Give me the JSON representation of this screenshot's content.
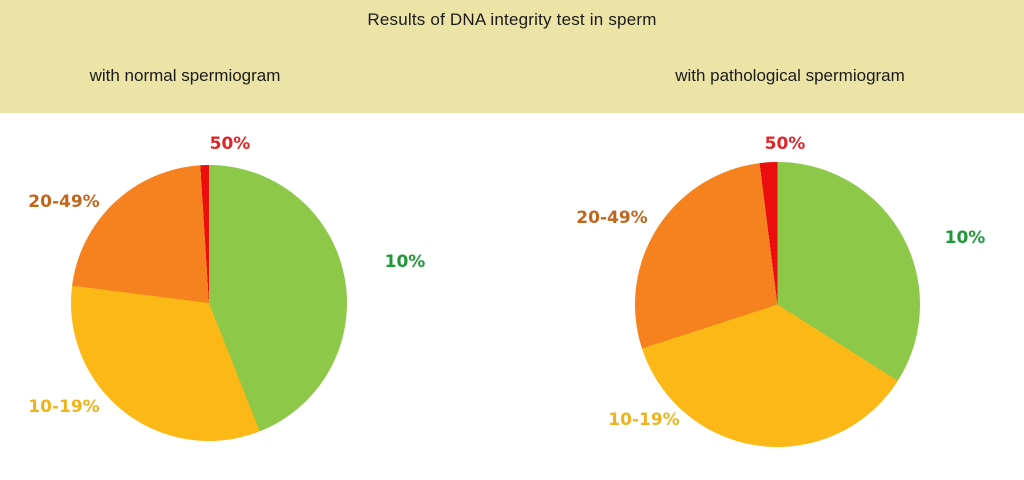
{
  "header": {
    "title": "Results of DNA integrity test in sperm",
    "background_color": "#ECE3A6",
    "left_subtitle": "with normal spermiogram",
    "right_subtitle": "with pathological spermiogram"
  },
  "chart_data": [
    {
      "type": "pie",
      "title": "with normal spermiogram",
      "labels": [
        "10%",
        "10-19%",
        "20-49%",
        "50%"
      ],
      "values": [
        44,
        33,
        22,
        1
      ],
      "slice_colors": [
        "#8DC848",
        "#FCB816",
        "#F5821F",
        "#EC0E0E"
      ],
      "label_colors": [
        "#1F9838",
        "#EFB41D",
        "#C2661C",
        "#E02529"
      ],
      "start_angle_deg": 0,
      "direction": "clockwise",
      "legend_position": "around-slices"
    },
    {
      "type": "pie",
      "title": "with pathological spermiogram",
      "labels": [
        "10%",
        "10-19%",
        "20-49%",
        "50%"
      ],
      "values": [
        34,
        36,
        28,
        2
      ],
      "slice_colors": [
        "#8DC848",
        "#FCB816",
        "#F5821F",
        "#EC0E0E"
      ],
      "label_colors": [
        "#1F9838",
        "#EFB41D",
        "#C2661C",
        "#E02529"
      ],
      "start_angle_deg": 0,
      "direction": "clockwise",
      "legend_position": "around-slices"
    }
  ]
}
